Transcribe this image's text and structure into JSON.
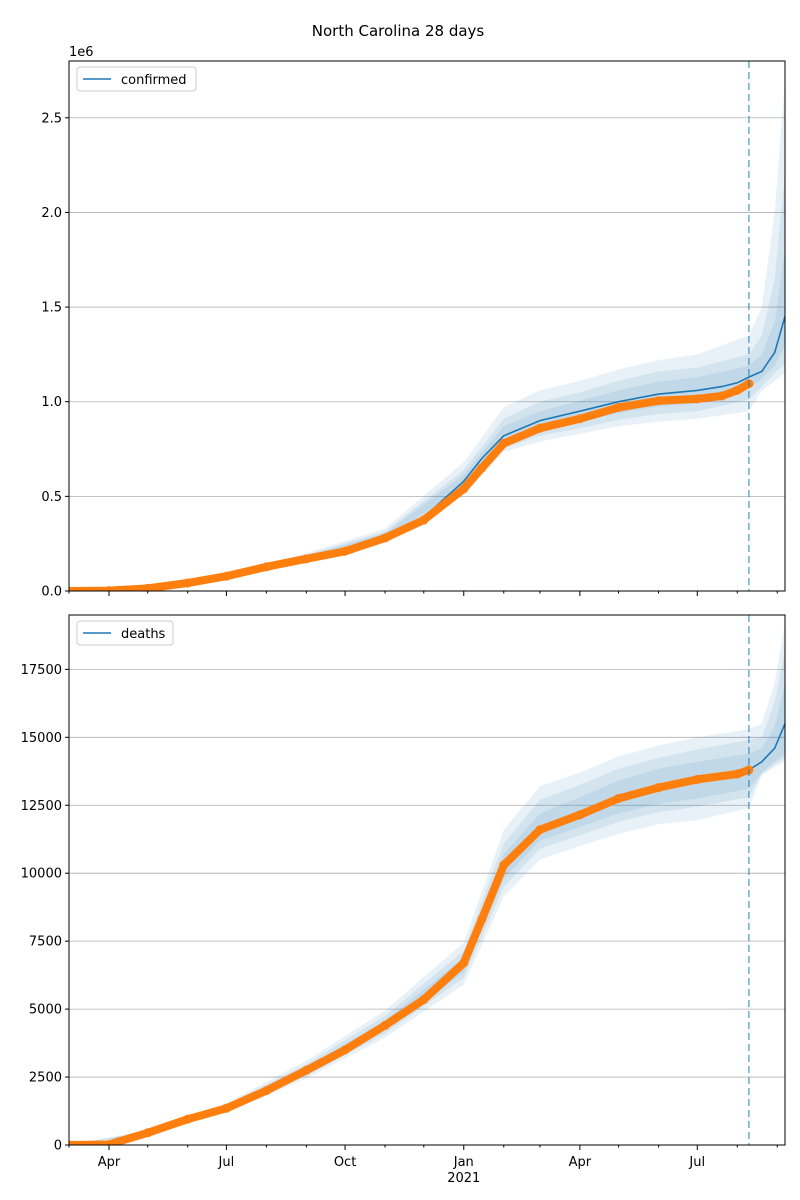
{
  "figure": {
    "title": "North Carolina 28 days"
  },
  "chart_data": [
    {
      "type": "line",
      "name": "confirmed-panel",
      "legend": {
        "label": "confirmed",
        "position": "top-left"
      },
      "ylim": [
        0,
        2800000
      ],
      "yticks": [
        0,
        500000,
        1000000,
        1500000,
        2000000,
        2500000
      ],
      "ytick_labels": [
        "0.0",
        "0.5",
        "1.0",
        "1.5",
        "2.0",
        "2.5"
      ],
      "y_offset_label": "1e6",
      "grid": "y",
      "color_model": "#1f77b4",
      "color_observed": "#ff7f0e",
      "forecast_start": "2021-08-10",
      "model": [
        [
          "2020-03-01",
          0
        ],
        [
          "2020-04-01",
          2000
        ],
        [
          "2020-05-01",
          14000
        ],
        [
          "2020-06-01",
          45000
        ],
        [
          "2020-07-01",
          80000
        ],
        [
          "2020-08-01",
          130000
        ],
        [
          "2020-09-01",
          175000
        ],
        [
          "2020-10-01",
          215000
        ],
        [
          "2020-11-01",
          290000
        ],
        [
          "2020-12-01",
          390000
        ],
        [
          "2021-01-01",
          580000
        ],
        [
          "2021-01-15",
          700000
        ],
        [
          "2021-02-01",
          820000
        ],
        [
          "2021-03-01",
          900000
        ],
        [
          "2021-04-01",
          950000
        ],
        [
          "2021-05-01",
          1000000
        ],
        [
          "2021-06-01",
          1040000
        ],
        [
          "2021-07-01",
          1060000
        ],
        [
          "2021-07-20",
          1080000
        ],
        [
          "2021-08-01",
          1100000
        ],
        [
          "2021-08-10",
          1130000
        ],
        [
          "2021-08-20",
          1160000
        ],
        [
          "2021-08-30",
          1260000
        ],
        [
          "2021-09-07",
          1450000
        ]
      ],
      "band_inner": [
        [
          "2020-03-01",
          0,
          0
        ],
        [
          "2020-05-01",
          12000,
          16000
        ],
        [
          "2020-07-01",
          74000,
          86000
        ],
        [
          "2020-09-01",
          165000,
          185000
        ],
        [
          "2020-11-01",
          275000,
          305000
        ],
        [
          "2021-01-01",
          550000,
          615000
        ],
        [
          "2021-02-01",
          780000,
          870000
        ],
        [
          "2021-03-01",
          850000,
          950000
        ],
        [
          "2021-04-01",
          895000,
          1005000
        ],
        [
          "2021-05-01",
          940000,
          1060000
        ],
        [
          "2021-06-01",
          975000,
          1105000
        ],
        [
          "2021-07-01",
          990000,
          1130000
        ],
        [
          "2021-08-10",
          1070000,
          1190000
        ],
        [
          "2021-08-20",
          1120000,
          1250000
        ],
        [
          "2021-08-30",
          1190000,
          1420000
        ],
        [
          "2021-09-07",
          1300000,
          1800000
        ]
      ],
      "band_mid": [
        [
          "2020-03-01",
          0,
          0
        ],
        [
          "2020-05-01",
          11000,
          17000
        ],
        [
          "2020-07-01",
          70000,
          90000
        ],
        [
          "2020-09-01",
          158000,
          192000
        ],
        [
          "2020-11-01",
          265000,
          315000
        ],
        [
          "2021-01-01",
          530000,
          640000
        ],
        [
          "2021-02-01",
          755000,
          910000
        ],
        [
          "2021-03-01",
          820000,
          1000000
        ],
        [
          "2021-04-01",
          860000,
          1050000
        ],
        [
          "2021-05-01",
          905000,
          1110000
        ],
        [
          "2021-06-01",
          935000,
          1160000
        ],
        [
          "2021-07-01",
          950000,
          1180000
        ],
        [
          "2021-08-10",
          1010000,
          1250000
        ],
        [
          "2021-08-20",
          1080000,
          1350000
        ],
        [
          "2021-08-30",
          1150000,
          1650000
        ],
        [
          "2021-09-07",
          1200000,
          2200000
        ]
      ],
      "band_outer": [
        [
          "2020-03-01",
          0,
          0
        ],
        [
          "2020-05-01",
          9000,
          19000
        ],
        [
          "2020-07-01",
          65000,
          96000
        ],
        [
          "2020-09-01",
          150000,
          200000
        ],
        [
          "2020-11-01",
          255000,
          330000
        ],
        [
          "2021-01-01",
          505000,
          680000
        ],
        [
          "2021-02-01",
          735000,
          970000
        ],
        [
          "2021-03-01",
          790000,
          1060000
        ],
        [
          "2021-04-01",
          830000,
          1110000
        ],
        [
          "2021-05-01",
          870000,
          1170000
        ],
        [
          "2021-06-01",
          895000,
          1220000
        ],
        [
          "2021-07-01",
          910000,
          1250000
        ],
        [
          "2021-08-10",
          950000,
          1350000
        ],
        [
          "2021-08-20",
          1060000,
          1500000
        ],
        [
          "2021-08-30",
          1110000,
          2000000
        ],
        [
          "2021-09-07",
          1150000,
          2700000
        ]
      ],
      "observed": [
        [
          "2020-03-01",
          0
        ],
        [
          "2020-04-01",
          2000
        ],
        [
          "2020-05-01",
          14000
        ],
        [
          "2020-06-01",
          42000
        ],
        [
          "2020-07-01",
          78000
        ],
        [
          "2020-08-01",
          128000
        ],
        [
          "2020-09-01",
          170000
        ],
        [
          "2020-10-01",
          210000
        ],
        [
          "2020-11-01",
          280000
        ],
        [
          "2020-12-01",
          375000
        ],
        [
          "2021-01-01",
          540000
        ],
        [
          "2021-01-15",
          650000
        ],
        [
          "2021-02-01",
          780000
        ],
        [
          "2021-03-01",
          860000
        ],
        [
          "2021-04-01",
          910000
        ],
        [
          "2021-05-01",
          970000
        ],
        [
          "2021-06-01",
          1005000
        ],
        [
          "2021-07-01",
          1015000
        ],
        [
          "2021-07-20",
          1030000
        ],
        [
          "2021-08-01",
          1060000
        ],
        [
          "2021-08-10",
          1095000
        ]
      ]
    },
    {
      "type": "line",
      "name": "deaths-panel",
      "legend": {
        "label": "deaths",
        "position": "top-left"
      },
      "ylim": [
        0,
        19500
      ],
      "yticks": [
        0,
        2500,
        5000,
        7500,
        10000,
        12500,
        15000,
        17500
      ],
      "ytick_labels": [
        "0",
        "2500",
        "5000",
        "7500",
        "10000",
        "12500",
        "15000",
        "17500"
      ],
      "grid": "y",
      "color_model": "#1f77b4",
      "color_observed": "#ff7f0e",
      "forecast_start": "2021-08-10",
      "xticks": [
        "2020-04-01",
        "2020-07-01",
        "2020-10-01",
        "2021-01-01",
        "2021-04-01",
        "2021-07-01"
      ],
      "xtick_labels": [
        "Apr",
        "Jul",
        "Oct",
        "Jan",
        "Apr",
        "Jul"
      ],
      "x_year_label": "2021",
      "model": [
        [
          "2020-03-01",
          0
        ],
        [
          "2020-04-01",
          20
        ],
        [
          "2020-05-01",
          450
        ],
        [
          "2020-06-01",
          950
        ],
        [
          "2020-07-01",
          1350
        ],
        [
          "2020-08-01",
          2000
        ],
        [
          "2020-09-01",
          2750
        ],
        [
          "2020-10-01",
          3500
        ],
        [
          "2020-11-01",
          4400
        ],
        [
          "2020-12-01",
          5300
        ],
        [
          "2021-01-01",
          6600
        ],
        [
          "2021-01-15",
          8200
        ],
        [
          "2021-02-01",
          10200
        ],
        [
          "2021-03-01",
          11700
        ],
        [
          "2021-04-01",
          12200
        ],
        [
          "2021-05-01",
          12800
        ],
        [
          "2021-06-01",
          13200
        ],
        [
          "2021-07-01",
          13450
        ],
        [
          "2021-08-01",
          13650
        ],
        [
          "2021-08-10",
          13800
        ],
        [
          "2021-08-20",
          14100
        ],
        [
          "2021-08-30",
          14600
        ],
        [
          "2021-09-07",
          15500
        ]
      ],
      "band_inner": [
        [
          "2020-03-01",
          0,
          0
        ],
        [
          "2020-05-01",
          420,
          480
        ],
        [
          "2020-07-01",
          1300,
          1420
        ],
        [
          "2020-09-01",
          2650,
          2870
        ],
        [
          "2020-11-01",
          4250,
          4580
        ],
        [
          "2021-01-01",
          6350,
          6900
        ],
        [
          "2021-02-01",
          9800,
          10700
        ],
        [
          "2021-03-01",
          11200,
          12200
        ],
        [
          "2021-04-01",
          11700,
          12800
        ],
        [
          "2021-05-01",
          12200,
          13400
        ],
        [
          "2021-06-01",
          12550,
          13850
        ],
        [
          "2021-07-01",
          12750,
          14100
        ],
        [
          "2021-08-10",
          13100,
          14400
        ],
        [
          "2021-08-20",
          13700,
          14600
        ],
        [
          "2021-08-30",
          14100,
          15400
        ],
        [
          "2021-09-07",
          14400,
          17000
        ]
      ],
      "band_mid": [
        [
          "2020-03-01",
          0,
          0
        ],
        [
          "2020-05-01",
          400,
          510
        ],
        [
          "2020-07-01",
          1250,
          1480
        ],
        [
          "2020-09-01",
          2550,
          2980
        ],
        [
          "2020-11-01",
          4100,
          4750
        ],
        [
          "2021-01-01",
          6150,
          7150
        ],
        [
          "2021-02-01",
          9500,
          11100
        ],
        [
          "2021-03-01",
          10900,
          12700
        ],
        [
          "2021-04-01",
          11400,
          13250
        ],
        [
          "2021-05-01",
          11900,
          13850
        ],
        [
          "2021-06-01",
          12250,
          14250
        ],
        [
          "2021-07-01",
          12450,
          14550
        ],
        [
          "2021-08-10",
          12800,
          14900
        ],
        [
          "2021-08-20",
          13650,
          15000
        ],
        [
          "2021-08-30",
          14000,
          16300
        ],
        [
          "2021-09-07",
          14250,
          18200
        ]
      ],
      "band_outer": [
        [
          "2020-03-01",
          0,
          0
        ],
        [
          "2020-05-01",
          380,
          540
        ],
        [
          "2020-07-01",
          1200,
          1550
        ],
        [
          "2020-09-01",
          2450,
          3100
        ],
        [
          "2020-11-01",
          3950,
          4950
        ],
        [
          "2021-01-01",
          5900,
          7450
        ],
        [
          "2021-02-01",
          9150,
          11600
        ],
        [
          "2021-03-01",
          10500,
          13200
        ],
        [
          "2021-04-01",
          11000,
          13700
        ],
        [
          "2021-05-01",
          11450,
          14300
        ],
        [
          "2021-06-01",
          11800,
          14700
        ],
        [
          "2021-07-01",
          11950,
          15000
        ],
        [
          "2021-08-10",
          12400,
          15300
        ],
        [
          "2021-08-20",
          13600,
          15500
        ],
        [
          "2021-08-30",
          13900,
          17000
        ],
        [
          "2021-09-07",
          14100,
          19200
        ]
      ],
      "observed": [
        [
          "2020-03-01",
          0
        ],
        [
          "2020-04-01",
          20
        ],
        [
          "2020-05-01",
          450
        ],
        [
          "2020-06-01",
          950
        ],
        [
          "2020-07-01",
          1350
        ],
        [
          "2020-08-01",
          2000
        ],
        [
          "2020-09-01",
          2750
        ],
        [
          "2020-10-01",
          3500
        ],
        [
          "2020-11-01",
          4400
        ],
        [
          "2020-12-01",
          5350
        ],
        [
          "2021-01-01",
          6700
        ],
        [
          "2021-01-15",
          8300
        ],
        [
          "2021-02-01",
          10300
        ],
        [
          "2021-03-01",
          11600
        ],
        [
          "2021-04-01",
          12150
        ],
        [
          "2021-05-01",
          12750
        ],
        [
          "2021-06-01",
          13150
        ],
        [
          "2021-07-01",
          13450
        ],
        [
          "2021-08-01",
          13650
        ],
        [
          "2021-08-10",
          13800
        ]
      ]
    }
  ]
}
